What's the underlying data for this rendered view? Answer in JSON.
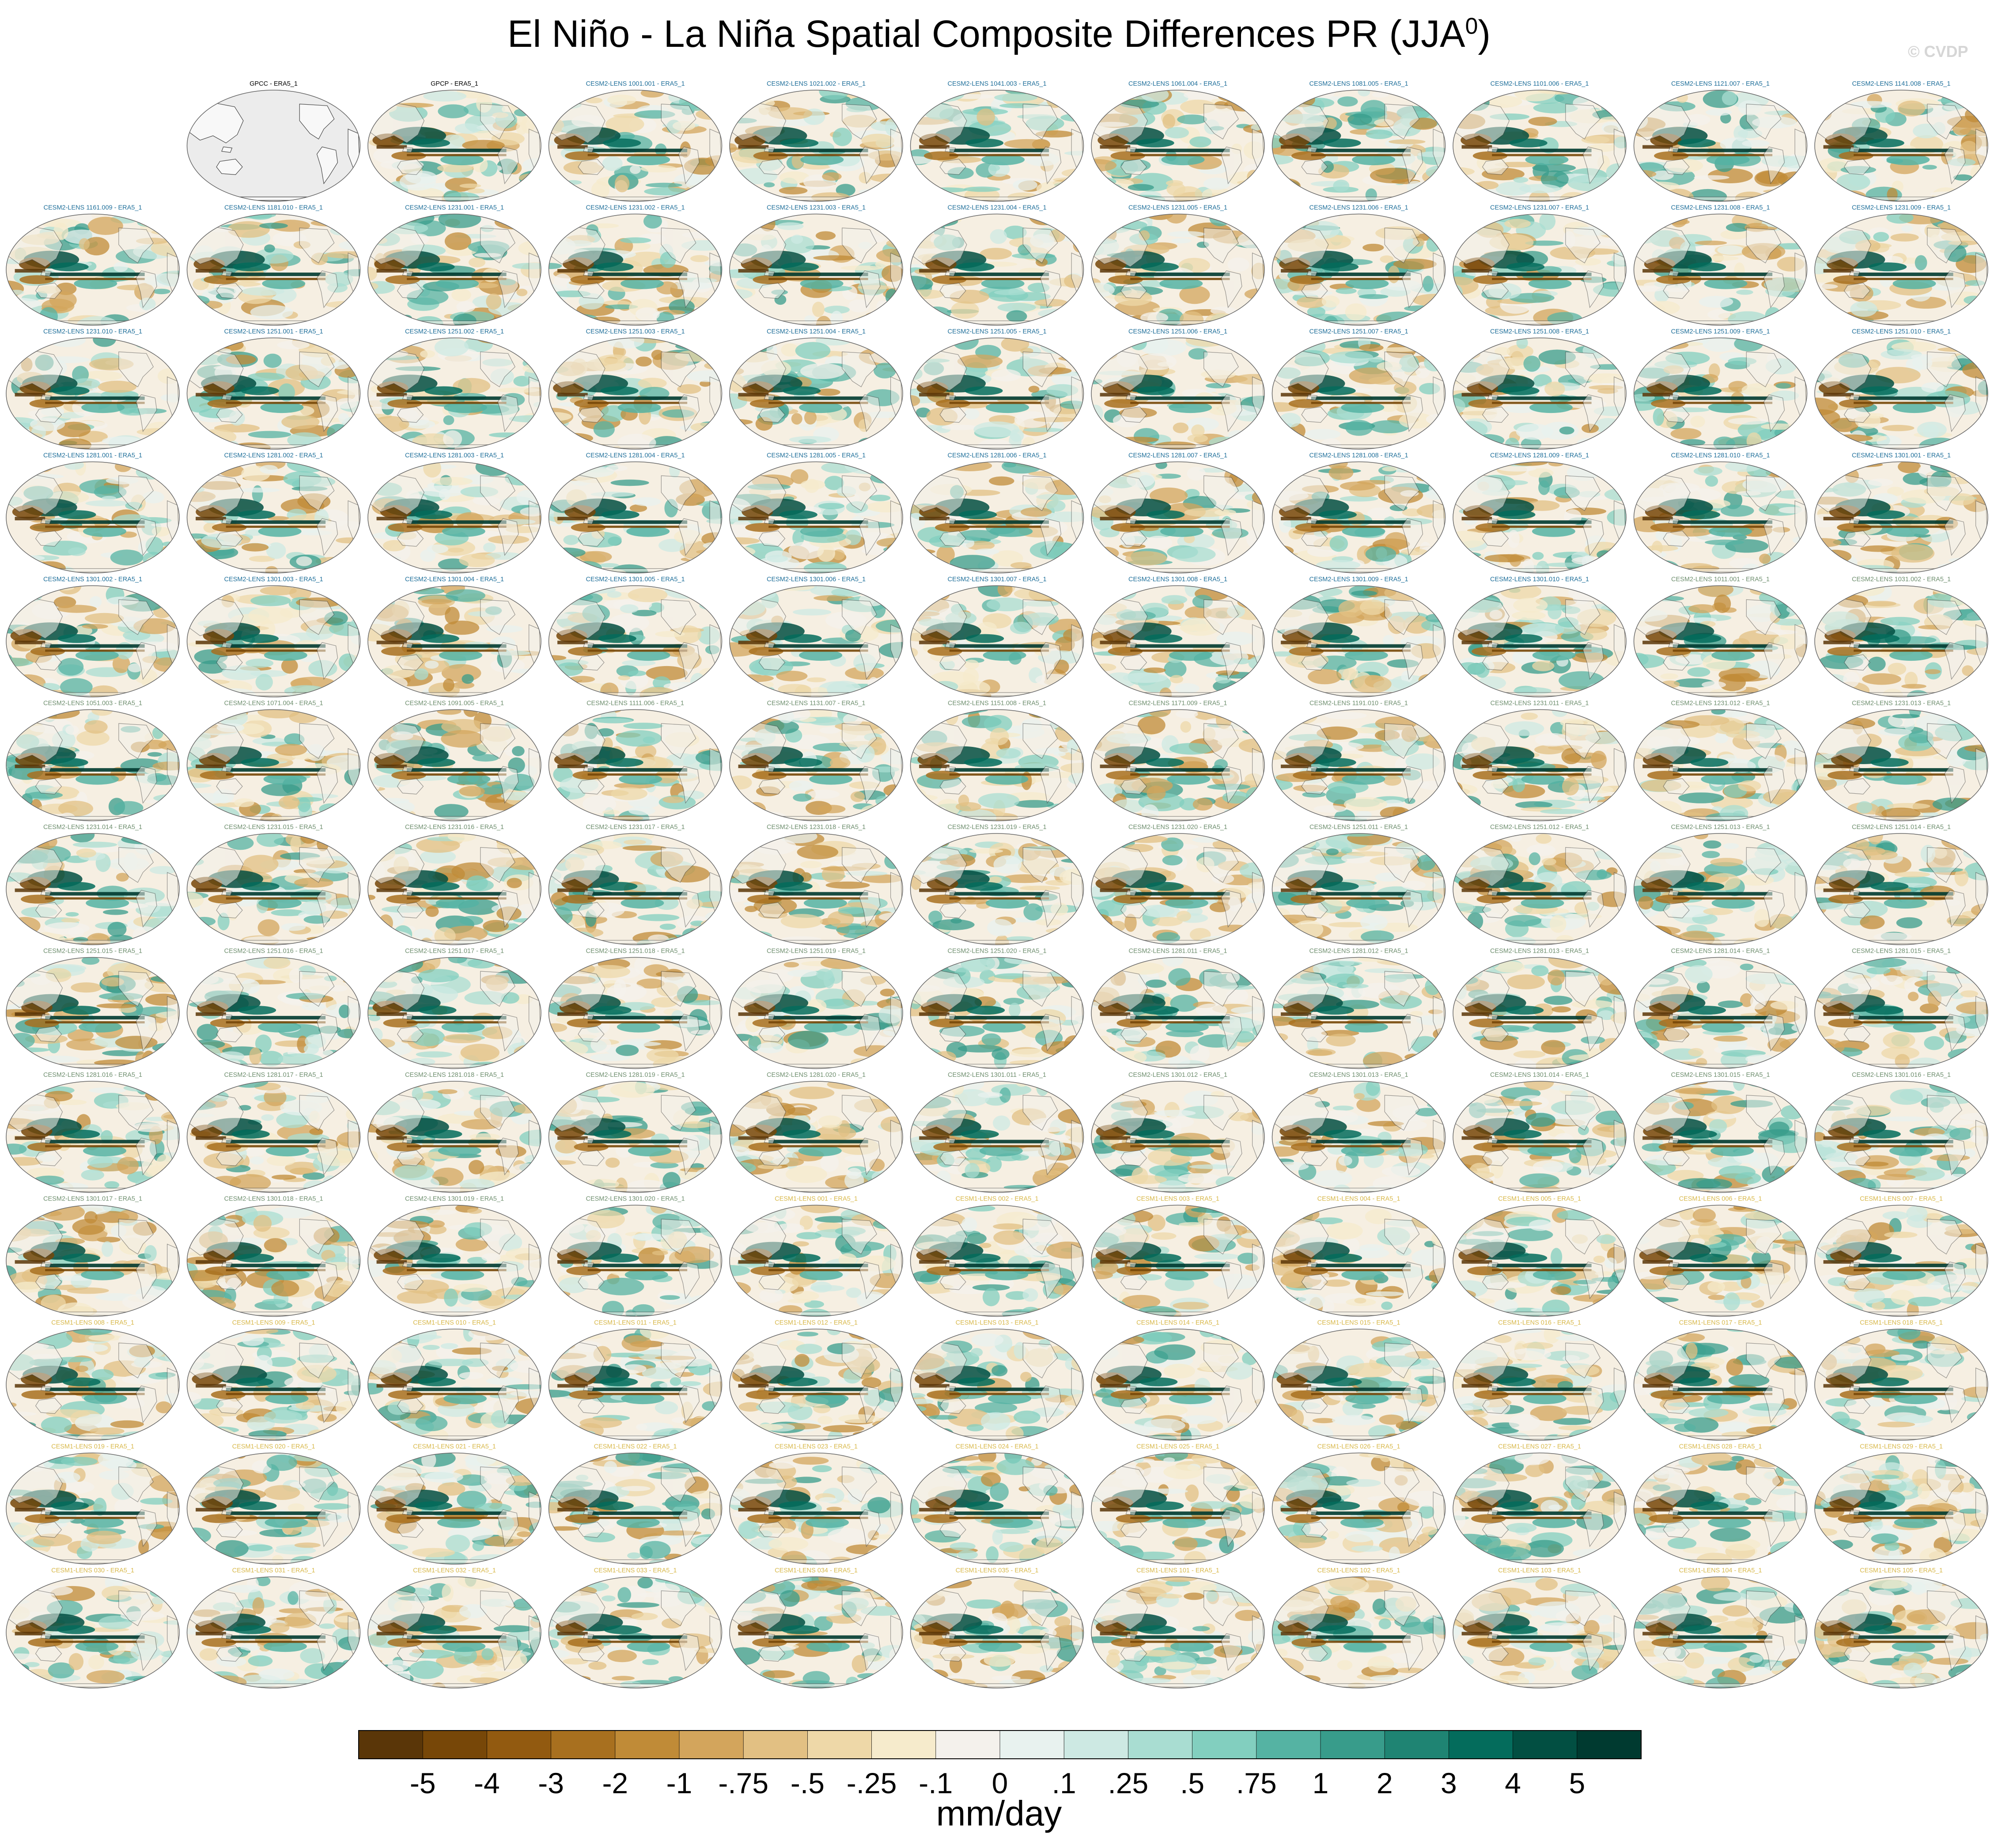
{
  "title": "El Niño - La Niña Spatial Composite Differences PR (JJA",
  "title_superscript": "0",
  "title_suffix": ")",
  "watermark": "© CVDP",
  "colors": {
    "obs_label": "#000000",
    "cesm2_smbb_label": "#1f6f9a",
    "cesm2_cmip6_label": "#6f8f6f",
    "cesm1_label": "#d8b84a",
    "land": "#f4f4f4",
    "background": "#ffffff"
  },
  "chart_data": {
    "type": "heatmap",
    "description_units": "mm/day",
    "panels": [
      {
        "label": "GPCC - ERA5_1",
        "group": "obs"
      },
      {
        "label": "GPCP - ERA5_1",
        "group": "obs"
      },
      {
        "label": "CESM2-LENS 1001.001 - ERA5_1",
        "group": "cesm2_smbb"
      },
      {
        "label": "CESM2-LENS 1021.002 - ERA5_1",
        "group": "cesm2_smbb"
      },
      {
        "label": "CESM2-LENS 1041.003 - ERA5_1",
        "group": "cesm2_smbb"
      },
      {
        "label": "CESM2-LENS 1061.004 - ERA5_1",
        "group": "cesm2_smbb"
      },
      {
        "label": "CESM2-LENS 1081.005 - ERA5_1",
        "group": "cesm2_smbb"
      },
      {
        "label": "CESM2-LENS 1101.006 - ERA5_1",
        "group": "cesm2_smbb"
      },
      {
        "label": "CESM2-LENS 1121.007 - ERA5_1",
        "group": "cesm2_smbb"
      },
      {
        "label": "CESM2-LENS 1141.008 - ERA5_1",
        "group": "cesm2_smbb"
      },
      {
        "label": "CESM2-LENS 1161.009 - ERA5_1",
        "group": "cesm2_smbb"
      },
      {
        "label": "CESM2-LENS 1181.010 - ERA5_1",
        "group": "cesm2_smbb"
      },
      {
        "label": "CESM2-LENS 1231.001 - ERA5_1",
        "group": "cesm2_smbb"
      },
      {
        "label": "CESM2-LENS 1231.002 - ERA5_1",
        "group": "cesm2_smbb"
      },
      {
        "label": "CESM2-LENS 1231.003 - ERA5_1",
        "group": "cesm2_smbb"
      },
      {
        "label": "CESM2-LENS 1231.004 - ERA5_1",
        "group": "cesm2_smbb"
      },
      {
        "label": "CESM2-LENS 1231.005 - ERA5_1",
        "group": "cesm2_smbb"
      },
      {
        "label": "CESM2-LENS 1231.006 - ERA5_1",
        "group": "cesm2_smbb"
      },
      {
        "label": "CESM2-LENS 1231.007 - ERA5_1",
        "group": "cesm2_smbb"
      },
      {
        "label": "CESM2-LENS 1231.008 - ERA5_1",
        "group": "cesm2_smbb"
      },
      {
        "label": "CESM2-LENS 1231.009 - ERA5_1",
        "group": "cesm2_smbb"
      },
      {
        "label": "CESM2-LENS 1231.010 - ERA5_1",
        "group": "cesm2_smbb"
      },
      {
        "label": "CESM2-LENS 1251.001 - ERA5_1",
        "group": "cesm2_smbb"
      },
      {
        "label": "CESM2-LENS 1251.002 - ERA5_1",
        "group": "cesm2_smbb"
      },
      {
        "label": "CESM2-LENS 1251.003 - ERA5_1",
        "group": "cesm2_smbb"
      },
      {
        "label": "CESM2-LENS 1251.004 - ERA5_1",
        "group": "cesm2_smbb"
      },
      {
        "label": "CESM2-LENS 1251.005 - ERA5_1",
        "group": "cesm2_smbb"
      },
      {
        "label": "CESM2-LENS 1251.006 - ERA5_1",
        "group": "cesm2_smbb"
      },
      {
        "label": "CESM2-LENS 1251.007 - ERA5_1",
        "group": "cesm2_smbb"
      },
      {
        "label": "CESM2-LENS 1251.008 - ERA5_1",
        "group": "cesm2_smbb"
      },
      {
        "label": "CESM2-LENS 1251.009 - ERA5_1",
        "group": "cesm2_smbb"
      },
      {
        "label": "CESM2-LENS 1251.010 - ERA5_1",
        "group": "cesm2_smbb"
      },
      {
        "label": "CESM2-LENS 1281.001 - ERA5_1",
        "group": "cesm2_smbb"
      },
      {
        "label": "CESM2-LENS 1281.002 - ERA5_1",
        "group": "cesm2_smbb"
      },
      {
        "label": "CESM2-LENS 1281.003 - ERA5_1",
        "group": "cesm2_smbb"
      },
      {
        "label": "CESM2-LENS 1281.004 - ERA5_1",
        "group": "cesm2_smbb"
      },
      {
        "label": "CESM2-LENS 1281.005 - ERA5_1",
        "group": "cesm2_smbb"
      },
      {
        "label": "CESM2-LENS 1281.006 - ERA5_1",
        "group": "cesm2_smbb"
      },
      {
        "label": "CESM2-LENS 1281.007 - ERA5_1",
        "group": "cesm2_smbb"
      },
      {
        "label": "CESM2-LENS 1281.008 - ERA5_1",
        "group": "cesm2_smbb"
      },
      {
        "label": "CESM2-LENS 1281.009 - ERA5_1",
        "group": "cesm2_smbb"
      },
      {
        "label": "CESM2-LENS 1281.010 - ERA5_1",
        "group": "cesm2_smbb"
      },
      {
        "label": "CESM2-LENS 1301.001 - ERA5_1",
        "group": "cesm2_smbb"
      },
      {
        "label": "CESM2-LENS 1301.002 - ERA5_1",
        "group": "cesm2_smbb"
      },
      {
        "label": "CESM2-LENS 1301.003 - ERA5_1",
        "group": "cesm2_smbb"
      },
      {
        "label": "CESM2-LENS 1301.004 - ERA5_1",
        "group": "cesm2_smbb"
      },
      {
        "label": "CESM2-LENS 1301.005 - ERA5_1",
        "group": "cesm2_smbb"
      },
      {
        "label": "CESM2-LENS 1301.006 - ERA5_1",
        "group": "cesm2_smbb"
      },
      {
        "label": "CESM2-LENS 1301.007 - ERA5_1",
        "group": "cesm2_smbb"
      },
      {
        "label": "CESM2-LENS 1301.008 - ERA5_1",
        "group": "cesm2_smbb"
      },
      {
        "label": "CESM2-LENS 1301.009 - ERA5_1",
        "group": "cesm2_smbb"
      },
      {
        "label": "CESM2-LENS 1301.010 - ERA5_1",
        "group": "cesm2_smbb"
      },
      {
        "label": "CESM2-LENS 1011.001 - ERA5_1",
        "group": "cesm2_cmip6"
      },
      {
        "label": "CESM2-LENS 1031.002 - ERA5_1",
        "group": "cesm2_cmip6"
      },
      {
        "label": "CESM2-LENS 1051.003 - ERA5_1",
        "group": "cesm2_cmip6"
      },
      {
        "label": "CESM2-LENS 1071.004 - ERA5_1",
        "group": "cesm2_cmip6"
      },
      {
        "label": "CESM2-LENS 1091.005 - ERA5_1",
        "group": "cesm2_cmip6"
      },
      {
        "label": "CESM2-LENS 1111.006 - ERA5_1",
        "group": "cesm2_cmip6"
      },
      {
        "label": "CESM2-LENS 1131.007 - ERA5_1",
        "group": "cesm2_cmip6"
      },
      {
        "label": "CESM2-LENS 1151.008 - ERA5_1",
        "group": "cesm2_cmip6"
      },
      {
        "label": "CESM2-LENS 1171.009 - ERA5_1",
        "group": "cesm2_cmip6"
      },
      {
        "label": "CESM2-LENS 1191.010 - ERA5_1",
        "group": "cesm2_cmip6"
      },
      {
        "label": "CESM2-LENS 1231.011 - ERA5_1",
        "group": "cesm2_cmip6"
      },
      {
        "label": "CESM2-LENS 1231.012 - ERA5_1",
        "group": "cesm2_cmip6"
      },
      {
        "label": "CESM2-LENS 1231.013 - ERA5_1",
        "group": "cesm2_cmip6"
      },
      {
        "label": "CESM2-LENS 1231.014 - ERA5_1",
        "group": "cesm2_cmip6"
      },
      {
        "label": "CESM2-LENS 1231.015 - ERA5_1",
        "group": "cesm2_cmip6"
      },
      {
        "label": "CESM2-LENS 1231.016 - ERA5_1",
        "group": "cesm2_cmip6"
      },
      {
        "label": "CESM2-LENS 1231.017 - ERA5_1",
        "group": "cesm2_cmip6"
      },
      {
        "label": "CESM2-LENS 1231.018 - ERA5_1",
        "group": "cesm2_cmip6"
      },
      {
        "label": "CESM2-LENS 1231.019 - ERA5_1",
        "group": "cesm2_cmip6"
      },
      {
        "label": "CESM2-LENS 1231.020 - ERA5_1",
        "group": "cesm2_cmip6"
      },
      {
        "label": "CESM2-LENS 1251.011 - ERA5_1",
        "group": "cesm2_cmip6"
      },
      {
        "label": "CESM2-LENS 1251.012 - ERA5_1",
        "group": "cesm2_cmip6"
      },
      {
        "label": "CESM2-LENS 1251.013 - ERA5_1",
        "group": "cesm2_cmip6"
      },
      {
        "label": "CESM2-LENS 1251.014 - ERA5_1",
        "group": "cesm2_cmip6"
      },
      {
        "label": "CESM2-LENS 1251.015 - ERA5_1",
        "group": "cesm2_cmip6"
      },
      {
        "label": "CESM2-LENS 1251.016 - ERA5_1",
        "group": "cesm2_cmip6"
      },
      {
        "label": "CESM2-LENS 1251.017 - ERA5_1",
        "group": "cesm2_cmip6"
      },
      {
        "label": "CESM2-LENS 1251.018 - ERA5_1",
        "group": "cesm2_cmip6"
      },
      {
        "label": "CESM2-LENS 1251.019 - ERA5_1",
        "group": "cesm2_cmip6"
      },
      {
        "label": "CESM2-LENS 1251.020 - ERA5_1",
        "group": "cesm2_cmip6"
      },
      {
        "label": "CESM2-LENS 1281.011 - ERA5_1",
        "group": "cesm2_cmip6"
      },
      {
        "label": "CESM2-LENS 1281.012 - ERA5_1",
        "group": "cesm2_cmip6"
      },
      {
        "label": "CESM2-LENS 1281.013 - ERA5_1",
        "group": "cesm2_cmip6"
      },
      {
        "label": "CESM2-LENS 1281.014 - ERA5_1",
        "group": "cesm2_cmip6"
      },
      {
        "label": "CESM2-LENS 1281.015 - ERA5_1",
        "group": "cesm2_cmip6"
      },
      {
        "label": "CESM2-LENS 1281.016 - ERA5_1",
        "group": "cesm2_cmip6"
      },
      {
        "label": "CESM2-LENS 1281.017 - ERA5_1",
        "group": "cesm2_cmip6"
      },
      {
        "label": "CESM2-LENS 1281.018 - ERA5_1",
        "group": "cesm2_cmip6"
      },
      {
        "label": "CESM2-LENS 1281.019 - ERA5_1",
        "group": "cesm2_cmip6"
      },
      {
        "label": "CESM2-LENS 1281.020 - ERA5_1",
        "group": "cesm2_cmip6"
      },
      {
        "label": "CESM2-LENS 1301.011 - ERA5_1",
        "group": "cesm2_cmip6"
      },
      {
        "label": "CESM2-LENS 1301.012 - ERA5_1",
        "group": "cesm2_cmip6"
      },
      {
        "label": "CESM2-LENS 1301.013 - ERA5_1",
        "group": "cesm2_cmip6"
      },
      {
        "label": "CESM2-LENS 1301.014 - ERA5_1",
        "group": "cesm2_cmip6"
      },
      {
        "label": "CESM2-LENS 1301.015 - ERA5_1",
        "group": "cesm2_cmip6"
      },
      {
        "label": "CESM2-LENS 1301.016 - ERA5_1",
        "group": "cesm2_cmip6"
      },
      {
        "label": "CESM2-LENS 1301.017 - ERA5_1",
        "group": "cesm2_cmip6"
      },
      {
        "label": "CESM2-LENS 1301.018 - ERA5_1",
        "group": "cesm2_cmip6"
      },
      {
        "label": "CESM2-LENS 1301.019 - ERA5_1",
        "group": "cesm2_cmip6"
      },
      {
        "label": "CESM2-LENS 1301.020 - ERA5_1",
        "group": "cesm2_cmip6"
      },
      {
        "label": "CESM1-LENS 001 - ERA5_1",
        "group": "cesm1"
      },
      {
        "label": "CESM1-LENS 002 - ERA5_1",
        "group": "cesm1"
      },
      {
        "label": "CESM1-LENS 003 - ERA5_1",
        "group": "cesm1"
      },
      {
        "label": "CESM1-LENS 004 - ERA5_1",
        "group": "cesm1"
      },
      {
        "label": "CESM1-LENS 005 - ERA5_1",
        "group": "cesm1"
      },
      {
        "label": "CESM1-LENS 006 - ERA5_1",
        "group": "cesm1"
      },
      {
        "label": "CESM1-LENS 007 - ERA5_1",
        "group": "cesm1"
      },
      {
        "label": "CESM1-LENS 008 - ERA5_1",
        "group": "cesm1"
      },
      {
        "label": "CESM1-LENS 009 - ERA5_1",
        "group": "cesm1"
      },
      {
        "label": "CESM1-LENS 010 - ERA5_1",
        "group": "cesm1"
      },
      {
        "label": "CESM1-LENS 011 - ERA5_1",
        "group": "cesm1"
      },
      {
        "label": "CESM1-LENS 012 - ERA5_1",
        "group": "cesm1"
      },
      {
        "label": "CESM1-LENS 013 - ERA5_1",
        "group": "cesm1"
      },
      {
        "label": "CESM1-LENS 014 - ERA5_1",
        "group": "cesm1"
      },
      {
        "label": "CESM1-LENS 015 - ERA5_1",
        "group": "cesm1"
      },
      {
        "label": "CESM1-LENS 016 - ERA5_1",
        "group": "cesm1"
      },
      {
        "label": "CESM1-LENS 017 - ERA5_1",
        "group": "cesm1"
      },
      {
        "label": "CESM1-LENS 018 - ERA5_1",
        "group": "cesm1"
      },
      {
        "label": "CESM1-LENS 019 - ERA5_1",
        "group": "cesm1"
      },
      {
        "label": "CESM1-LENS 020 - ERA5_1",
        "group": "cesm1"
      },
      {
        "label": "CESM1-LENS 021 - ERA5_1",
        "group": "cesm1"
      },
      {
        "label": "CESM1-LENS 022 - ERA5_1",
        "group": "cesm1"
      },
      {
        "label": "CESM1-LENS 023 - ERA5_1",
        "group": "cesm1"
      },
      {
        "label": "CESM1-LENS 024 - ERA5_1",
        "group": "cesm1"
      },
      {
        "label": "CESM1-LENS 025 - ERA5_1",
        "group": "cesm1"
      },
      {
        "label": "CESM1-LENS 026 - ERA5_1",
        "group": "cesm1"
      },
      {
        "label": "CESM1-LENS 027 - ERA5_1",
        "group": "cesm1"
      },
      {
        "label": "CESM1-LENS 028 - ERA5_1",
        "group": "cesm1"
      },
      {
        "label": "CESM1-LENS 029 - ERA5_1",
        "group": "cesm1"
      },
      {
        "label": "CESM1-LENS 030 - ERA5_1",
        "group": "cesm1"
      },
      {
        "label": "CESM1-LENS 031 - ERA5_1",
        "group": "cesm1"
      },
      {
        "label": "CESM1-LENS 032 - ERA5_1",
        "group": "cesm1"
      },
      {
        "label": "CESM1-LENS 033 - ERA5_1",
        "group": "cesm1"
      },
      {
        "label": "CESM1-LENS 034 - ERA5_1",
        "group": "cesm1"
      },
      {
        "label": "CESM1-LENS 035 - ERA5_1",
        "group": "cesm1"
      },
      {
        "label": "CESM1-LENS 101 - ERA5_1",
        "group": "cesm1"
      },
      {
        "label": "CESM1-LENS 102 - ERA5_1",
        "group": "cesm1"
      },
      {
        "label": "CESM1-LENS 103 - ERA5_1",
        "group": "cesm1"
      },
      {
        "label": "CESM1-LENS 104 - ERA5_1",
        "group": "cesm1"
      },
      {
        "label": "CESM1-LENS 105 - ERA5_1",
        "group": "cesm1"
      }
    ],
    "colorbar": {
      "tick_labels": [
        "-5",
        "-4",
        "-3",
        "-2",
        "-1",
        "-.75",
        "-.5",
        "-.25",
        "-.1",
        "0",
        ".1",
        ".25",
        ".5",
        ".75",
        "1",
        "2",
        "3",
        "4",
        "5"
      ],
      "colors": [
        "#5a3608",
        "#774708",
        "#925a10",
        "#a8701f",
        "#c08b37",
        "#d3a55c",
        "#e2c083",
        "#eed8a8",
        "#f6ebcc",
        "#f4f1ec",
        "#e8f2ef",
        "#cde9e3",
        "#a9ddd2",
        "#82cfbf",
        "#55b3a3",
        "#389c8b",
        "#1f8473",
        "#046c5c",
        "#024f42",
        "#003a30"
      ],
      "label": "mm/day"
    }
  }
}
